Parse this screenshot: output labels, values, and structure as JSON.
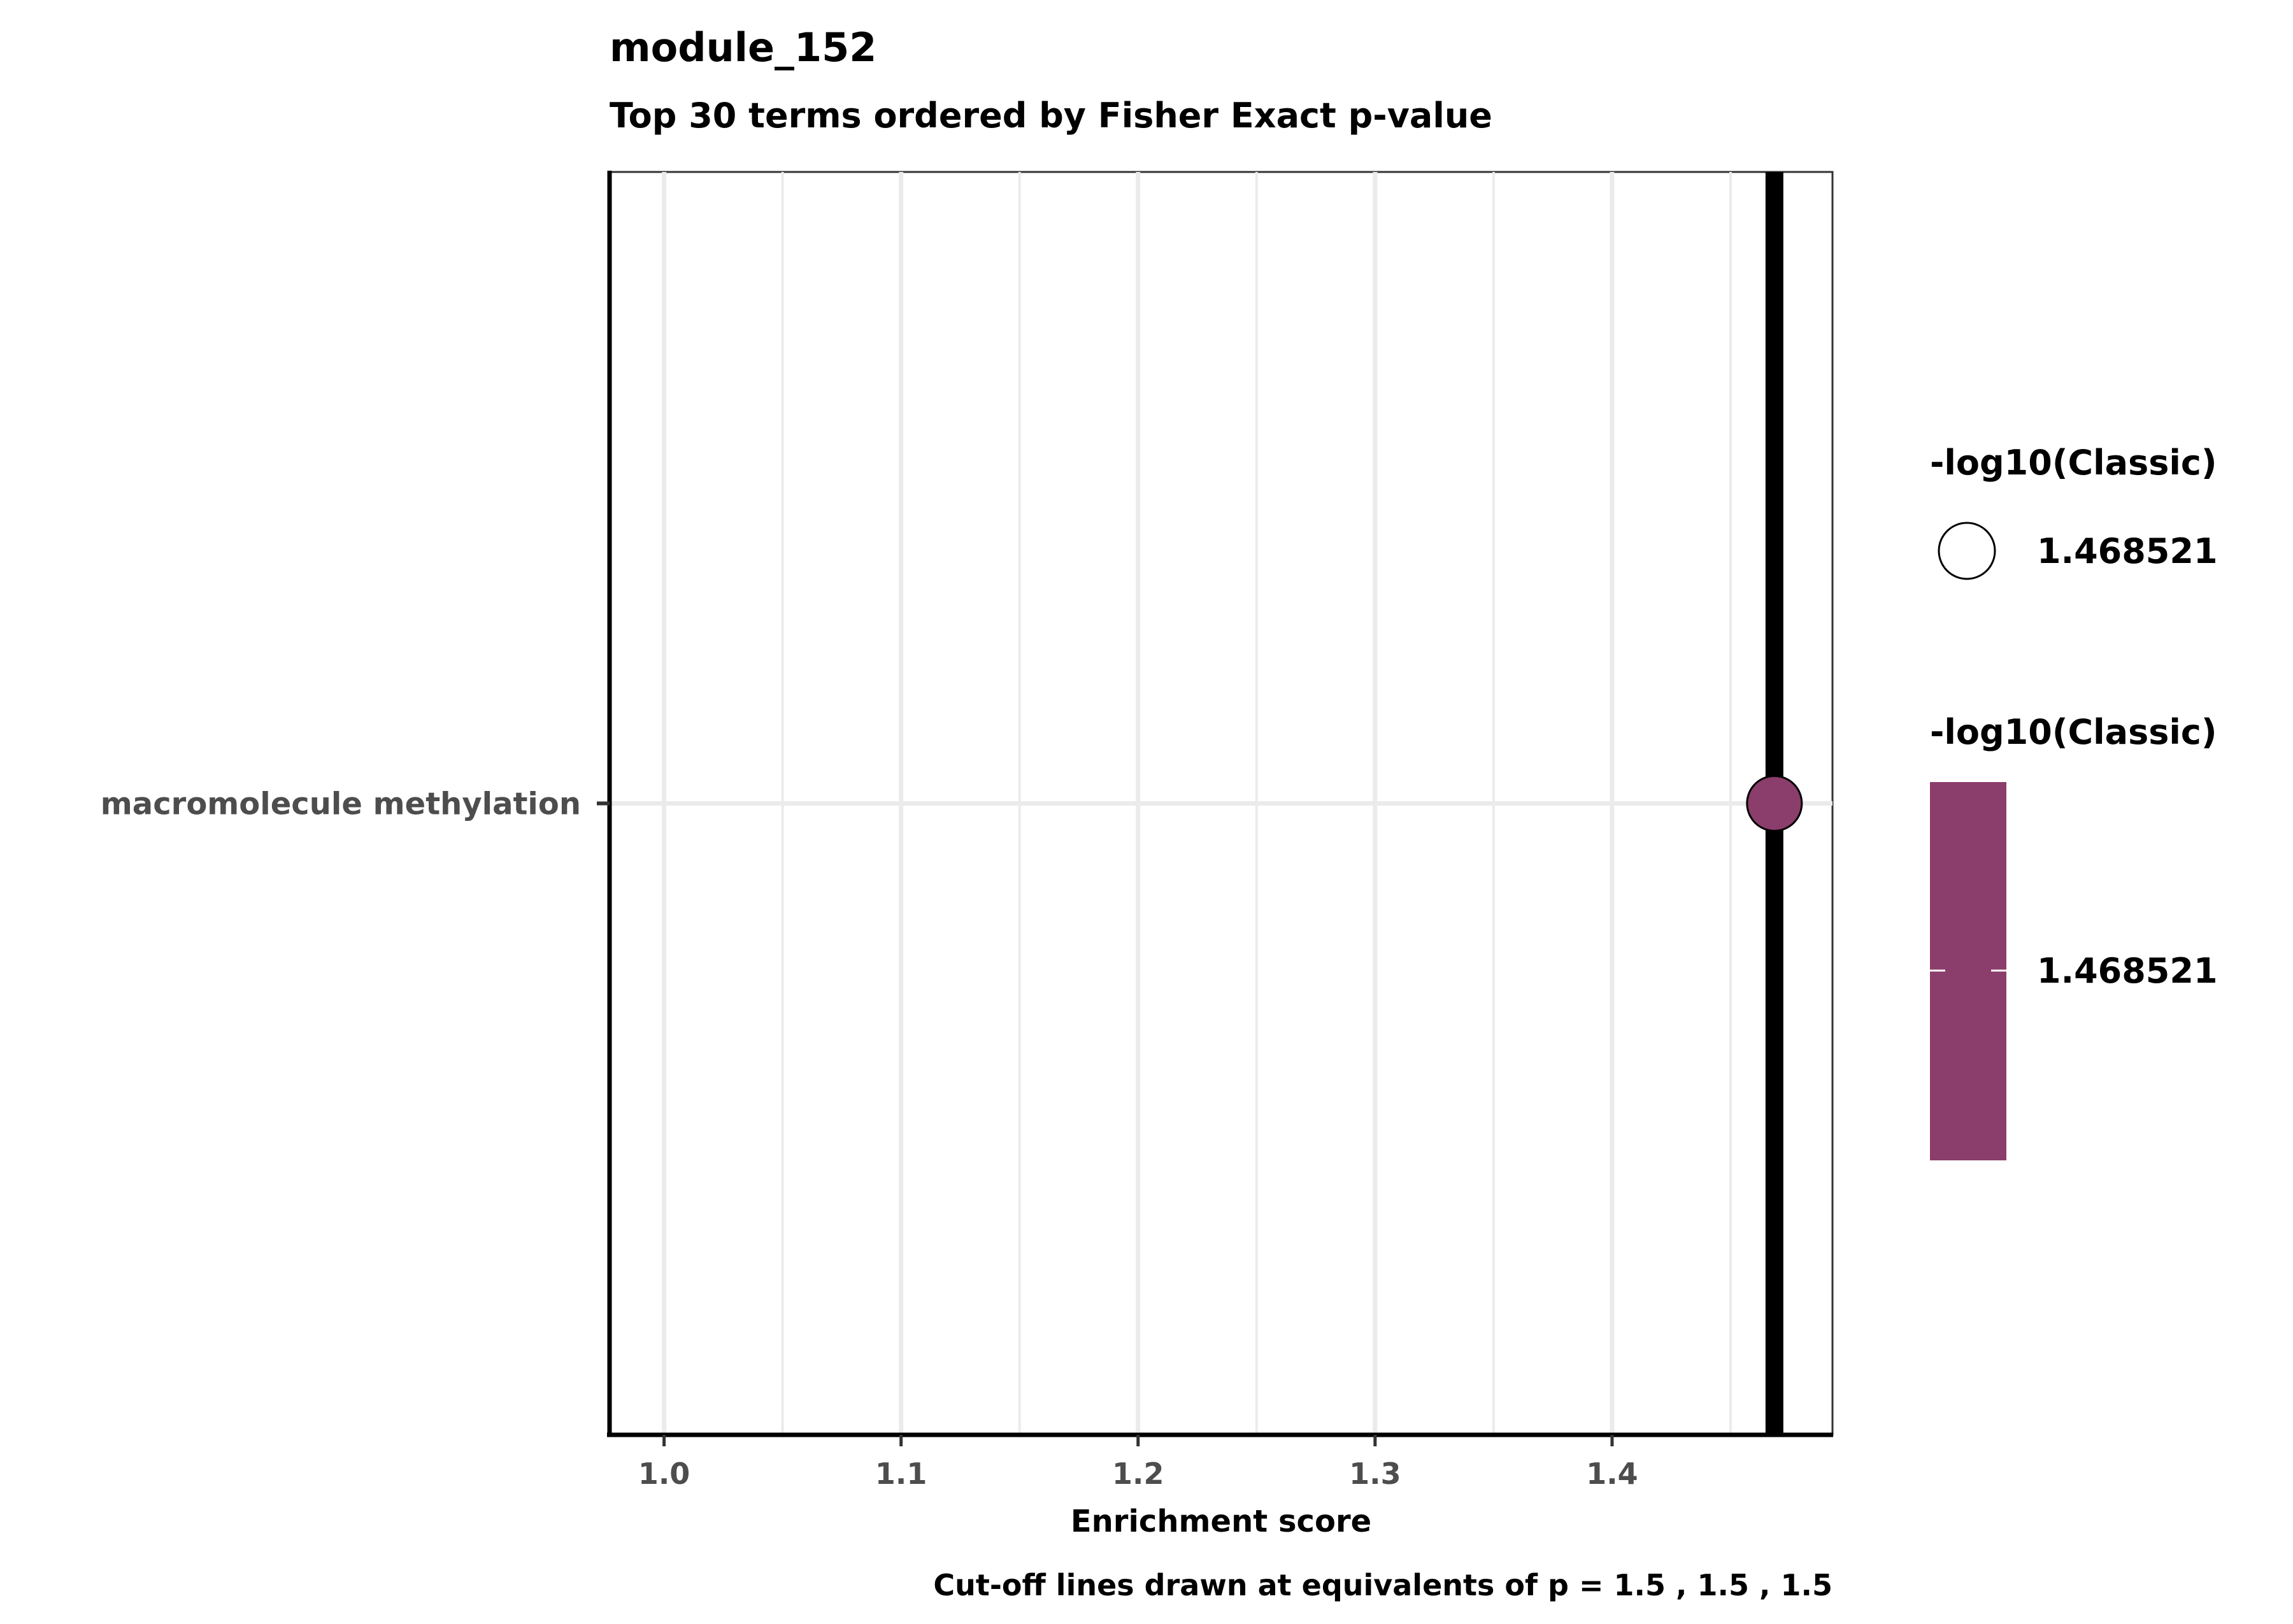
{
  "chart_data": {
    "type": "scatter",
    "title": "module_152",
    "subtitle": "Top 30 terms ordered by Fisher Exact p-value",
    "xlabel": "Enrichment score",
    "ylabel": "",
    "caption": "Cut-off lines drawn at equivalents of p = 1.5 , 1.5 , 1.5",
    "xlim": [
      0.977,
      1.493
    ],
    "x_ticks": [
      1.0,
      1.1,
      1.2,
      1.3,
      1.4
    ],
    "x_tick_labels": [
      "1.0",
      "1.1",
      "1.2",
      "1.3",
      "1.4"
    ],
    "categories": [
      "macromolecule methylation"
    ],
    "points": [
      {
        "term": "macromolecule methylation",
        "x": 1.4685,
        "size_value": 1.468521,
        "color_value": 1.468521
      }
    ],
    "cutoff_lines": [
      1.4685
    ],
    "grid": true,
    "point_color": "#8b3d6b",
    "cutoff_color": "#000000",
    "legend_position": "right",
    "legends": {
      "size": {
        "title": "-log10(Classic)",
        "label": "1.468521"
      },
      "color": {
        "title": "-log10(Classic)",
        "label": "1.468521",
        "color": "#8b3d6b"
      }
    }
  }
}
